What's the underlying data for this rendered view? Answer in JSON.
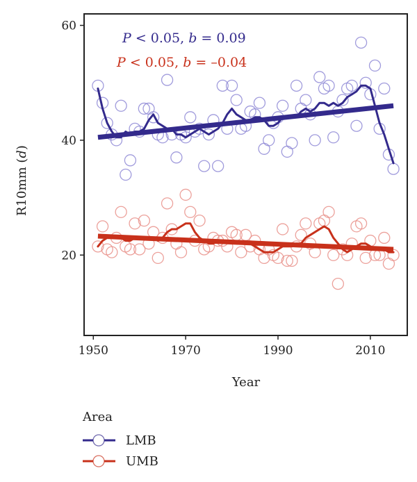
{
  "chart_data": {
    "type": "scatter",
    "xlabel": "Year",
    "ylabel_main": "R10mm (",
    "ylabel_unit": "d",
    "ylabel_close": ")",
    "xlim": [
      1948,
      2018
    ],
    "ylim": [
      6,
      62
    ],
    "xticks": [
      1950,
      1970,
      1990,
      2010
    ],
    "yticks": [
      20,
      40,
      60
    ],
    "grid": false,
    "legend": {
      "title": "Area",
      "placement": "bottom-left",
      "entries": [
        {
          "label": "LMB",
          "color": "#332a8c"
        },
        {
          "label": "UMB",
          "color": "#c8311b"
        }
      ]
    },
    "annotations": [
      {
        "p": "P",
        "rest": " < 0.05, ",
        "b": "b",
        "value": " = 0.09",
        "color": "#332a8c"
      },
      {
        "p": "P",
        "rest": " < 0.05, ",
        "b": "b",
        "value": " = –0.04",
        "color": "#c8311b"
      }
    ],
    "series": [
      {
        "name": "LMB",
        "color": "#332a8c",
        "point_color": "#8f8ad6",
        "trend": [
          [
            1951,
            40.5
          ],
          [
            2015,
            46
          ]
        ],
        "points": [
          [
            1951,
            49.5
          ],
          [
            1952,
            46.5
          ],
          [
            1953,
            43
          ],
          [
            1954,
            41
          ],
          [
            1955,
            40
          ],
          [
            1956,
            46
          ],
          [
            1957,
            34
          ],
          [
            1958,
            36.5
          ],
          [
            1959,
            42
          ],
          [
            1960,
            41.5
          ],
          [
            1961,
            45.5
          ],
          [
            1962,
            45.5
          ],
          [
            1963,
            44
          ],
          [
            1964,
            41
          ],
          [
            1965,
            40.5
          ],
          [
            1966,
            50.5
          ],
          [
            1967,
            41
          ],
          [
            1968,
            37
          ],
          [
            1969,
            41
          ],
          [
            1970,
            40.5
          ],
          [
            1971,
            44
          ],
          [
            1972,
            41.5
          ],
          [
            1973,
            42
          ],
          [
            1974,
            35.5
          ],
          [
            1975,
            41
          ],
          [
            1976,
            43.5
          ],
          [
            1977,
            35.5
          ],
          [
            1978,
            49.5
          ],
          [
            1979,
            42
          ],
          [
            1980,
            49.5
          ],
          [
            1981,
            47
          ],
          [
            1982,
            42
          ],
          [
            1983,
            42.5
          ],
          [
            1984,
            45
          ],
          [
            1985,
            44.5
          ],
          [
            1986,
            46.5
          ],
          [
            1987,
            38.5
          ],
          [
            1988,
            40
          ],
          [
            1989,
            43
          ],
          [
            1990,
            44
          ],
          [
            1991,
            46
          ],
          [
            1992,
            38
          ],
          [
            1993,
            39.5
          ],
          [
            1994,
            49.5
          ],
          [
            1995,
            45.5
          ],
          [
            1996,
            47
          ],
          [
            1997,
            44.5
          ],
          [
            1998,
            40
          ],
          [
            1999,
            51
          ],
          [
            2000,
            49
          ],
          [
            2001,
            49.5
          ],
          [
            2002,
            40.5
          ],
          [
            2003,
            45
          ],
          [
            2004,
            47
          ],
          [
            2005,
            49
          ],
          [
            2006,
            49.5
          ],
          [
            2007,
            42.5
          ],
          [
            2008,
            57
          ],
          [
            2009,
            50
          ],
          [
            2010,
            48
          ],
          [
            2011,
            53
          ],
          [
            2012,
            42
          ],
          [
            2013,
            49
          ],
          [
            2014,
            37.5
          ],
          [
            2015,
            35
          ]
        ],
        "smooth": [
          [
            1951,
            49
          ],
          [
            1952,
            45.5
          ],
          [
            1953,
            43
          ],
          [
            1954,
            41.5
          ],
          [
            1955,
            40.5
          ],
          [
            1956,
            40.5
          ],
          [
            1957,
            41.5
          ],
          [
            1958,
            41
          ],
          [
            1959,
            41.5
          ],
          [
            1960,
            41.5
          ],
          [
            1961,
            42
          ],
          [
            1962,
            43.5
          ],
          [
            1963,
            44.5
          ],
          [
            1964,
            43
          ],
          [
            1965,
            42.5
          ],
          [
            1966,
            42
          ],
          [
            1967,
            42
          ],
          [
            1968,
            41
          ],
          [
            1969,
            41
          ],
          [
            1970,
            40.5
          ],
          [
            1971,
            41
          ],
          [
            1972,
            41.5
          ],
          [
            1973,
            42
          ],
          [
            1974,
            41.5
          ],
          [
            1975,
            41
          ],
          [
            1976,
            41.5
          ],
          [
            1977,
            42
          ],
          [
            1978,
            43
          ],
          [
            1979,
            44.5
          ],
          [
            1980,
            45.5
          ],
          [
            1981,
            44.5
          ],
          [
            1982,
            44
          ],
          [
            1983,
            43.5
          ],
          [
            1984,
            43.5
          ],
          [
            1985,
            44
          ],
          [
            1986,
            44
          ],
          [
            1987,
            43.5
          ],
          [
            1988,
            42.5
          ],
          [
            1989,
            42.5
          ],
          [
            1990,
            43
          ],
          [
            1991,
            44
          ],
          [
            1992,
            44
          ],
          [
            1993,
            44
          ],
          [
            1994,
            44
          ],
          [
            1995,
            45
          ],
          [
            1996,
            45.5
          ],
          [
            1997,
            45
          ],
          [
            1998,
            45.5
          ],
          [
            1999,
            46.5
          ],
          [
            2000,
            46.5
          ],
          [
            2001,
            46
          ],
          [
            2002,
            46.5
          ],
          [
            2003,
            46
          ],
          [
            2004,
            46.5
          ],
          [
            2005,
            47.5
          ],
          [
            2006,
            48
          ],
          [
            2007,
            48.5
          ],
          [
            2008,
            49.5
          ],
          [
            2009,
            49.5
          ],
          [
            2010,
            49
          ],
          [
            2011,
            46
          ],
          [
            2012,
            43
          ],
          [
            2013,
            41
          ],
          [
            2014,
            38.5
          ],
          [
            2015,
            36
          ]
        ]
      },
      {
        "name": "UMB",
        "color": "#c8311b",
        "point_color": "#e9908a",
        "trend": [
          [
            1951,
            23.3
          ],
          [
            2015,
            21
          ]
        ],
        "points": [
          [
            1951,
            21.5
          ],
          [
            1952,
            25
          ],
          [
            1953,
            21
          ],
          [
            1954,
            20.5
          ],
          [
            1955,
            23
          ],
          [
            1956,
            27.5
          ],
          [
            1957,
            21.5
          ],
          [
            1958,
            21
          ],
          [
            1959,
            25.5
          ],
          [
            1960,
            21
          ],
          [
            1961,
            26
          ],
          [
            1962,
            22
          ],
          [
            1963,
            24
          ],
          [
            1964,
            19.5
          ],
          [
            1965,
            23
          ],
          [
            1966,
            29
          ],
          [
            1967,
            24.5
          ],
          [
            1968,
            22
          ],
          [
            1969,
            20.5
          ],
          [
            1970,
            30.5
          ],
          [
            1971,
            27.5
          ],
          [
            1972,
            22.5
          ],
          [
            1973,
            26
          ],
          [
            1974,
            21
          ],
          [
            1975,
            21.5
          ],
          [
            1976,
            23
          ],
          [
            1977,
            22.5
          ],
          [
            1978,
            22.5
          ],
          [
            1979,
            21.5
          ],
          [
            1980,
            24
          ],
          [
            1981,
            23.5
          ],
          [
            1982,
            20.5
          ],
          [
            1983,
            23.5
          ],
          [
            1984,
            21.5
          ],
          [
            1985,
            22.5
          ],
          [
            1986,
            21
          ],
          [
            1987,
            19.5
          ],
          [
            1988,
            21
          ],
          [
            1989,
            20
          ],
          [
            1990,
            19.5
          ],
          [
            1991,
            24.5
          ],
          [
            1992,
            19
          ],
          [
            1993,
            19
          ],
          [
            1994,
            21.5
          ],
          [
            1995,
            23.5
          ],
          [
            1996,
            25.5
          ],
          [
            1997,
            22
          ],
          [
            1998,
            20.5
          ],
          [
            1999,
            25.5
          ],
          [
            2000,
            26
          ],
          [
            2001,
            27.5
          ],
          [
            2002,
            20
          ],
          [
            2003,
            15
          ],
          [
            2004,
            21
          ],
          [
            2005,
            20
          ],
          [
            2006,
            22
          ],
          [
            2007,
            25
          ],
          [
            2008,
            25.5
          ],
          [
            2009,
            19.5
          ],
          [
            2010,
            22.5
          ],
          [
            2011,
            20
          ],
          [
            2012,
            20
          ],
          [
            2013,
            23
          ],
          [
            2014,
            18.5
          ],
          [
            2015,
            20
          ]
        ],
        "smooth": [
          [
            1951,
            21.5
          ],
          [
            1952,
            22.5
          ],
          [
            1953,
            23
          ],
          [
            1954,
            23
          ],
          [
            1955,
            23
          ],
          [
            1956,
            23
          ],
          [
            1957,
            22.5
          ],
          [
            1958,
            22.5
          ],
          [
            1959,
            23
          ],
          [
            1960,
            23
          ],
          [
            1961,
            23
          ],
          [
            1962,
            23
          ],
          [
            1963,
            23
          ],
          [
            1964,
            22.5
          ],
          [
            1965,
            23
          ],
          [
            1966,
            24
          ],
          [
            1967,
            24.5
          ],
          [
            1968,
            24.5
          ],
          [
            1969,
            25
          ],
          [
            1970,
            25.5
          ],
          [
            1971,
            25.5
          ],
          [
            1972,
            24
          ],
          [
            1973,
            23
          ],
          [
            1974,
            22.5
          ],
          [
            1975,
            22
          ],
          [
            1976,
            22
          ],
          [
            1977,
            22.5
          ],
          [
            1978,
            22.5
          ],
          [
            1979,
            22.5
          ],
          [
            1980,
            22.5
          ],
          [
            1981,
            22
          ],
          [
            1982,
            22
          ],
          [
            1983,
            22
          ],
          [
            1984,
            22
          ],
          [
            1985,
            21.5
          ],
          [
            1986,
            21
          ],
          [
            1987,
            20.5
          ],
          [
            1988,
            20.5
          ],
          [
            1989,
            20.5
          ],
          [
            1990,
            21
          ],
          [
            1991,
            21.5
          ],
          [
            1992,
            21.5
          ],
          [
            1993,
            21.5
          ],
          [
            1994,
            22
          ],
          [
            1995,
            22
          ],
          [
            1996,
            23
          ],
          [
            1997,
            23.5
          ],
          [
            1998,
            24
          ],
          [
            1999,
            24.5
          ],
          [
            2000,
            25
          ],
          [
            2001,
            24.5
          ],
          [
            2002,
            23
          ],
          [
            2003,
            22
          ],
          [
            2004,
            21
          ],
          [
            2005,
            20.5
          ],
          [
            2006,
            21
          ],
          [
            2007,
            21.5
          ],
          [
            2008,
            22
          ],
          [
            2009,
            22
          ],
          [
            2010,
            21.5
          ],
          [
            2011,
            21
          ],
          [
            2012,
            21
          ],
          [
            2013,
            21
          ],
          [
            2014,
            20.5
          ],
          [
            2015,
            20.5
          ]
        ]
      }
    ]
  }
}
